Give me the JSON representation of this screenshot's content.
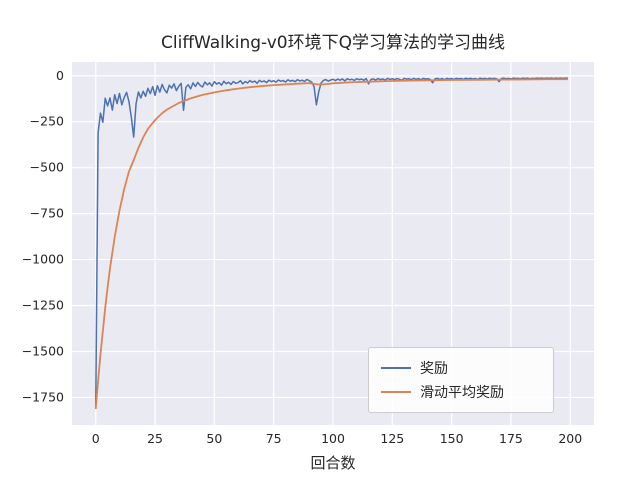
{
  "chart_data": {
    "type": "line",
    "title": "CliffWalking-v0环境下Q学习算法的学习曲线",
    "xlabel": "回合数",
    "ylabel": "",
    "xlim": [
      -10,
      210
    ],
    "ylim": [
      -1900,
      75
    ],
    "xticks": [
      0,
      25,
      50,
      75,
      100,
      125,
      150,
      175,
      200
    ],
    "yticks": [
      0,
      -250,
      -500,
      -750,
      -1000,
      -1250,
      -1500,
      -1750
    ],
    "grid": true,
    "legend_position": "lower right",
    "axes_background": "#eaeaf2",
    "grid_color": "#ffffff",
    "series": [
      {
        "name": "奖励",
        "color": "#4C72B0",
        "x_start": 0,
        "x_step": 1,
        "values": [
          -1812,
          -310,
          -203,
          -253,
          -122,
          -164,
          -120,
          -187,
          -103,
          -151,
          -96,
          -158,
          -118,
          -90,
          -140,
          -226,
          -333,
          -152,
          -88,
          -121,
          -84,
          -112,
          -68,
          -97,
          -59,
          -106,
          -54,
          -89,
          -47,
          -76,
          -93,
          -51,
          -67,
          -44,
          -81,
          -57,
          -41,
          -188,
          -63,
          -49,
          -71,
          -39,
          -58,
          -36,
          -52,
          -61,
          -34,
          -49,
          -38,
          -56,
          -32,
          -45,
          -37,
          -51,
          -30,
          -43,
          -35,
          -47,
          -31,
          -41,
          -37,
          -27,
          -44,
          -31,
          -39,
          -26,
          -35,
          -29,
          -41,
          -25,
          -33,
          -28,
          -37,
          -24,
          -32,
          -27,
          -35,
          -23,
          -30,
          -26,
          -34,
          -22,
          -29,
          -25,
          -32,
          -21,
          -28,
          -24,
          -31,
          -20,
          -27,
          -34,
          -58,
          -158,
          -86,
          -39,
          -25,
          -21,
          -29,
          -23,
          -19,
          -26,
          -18,
          -24,
          -17,
          -28,
          -16,
          -22,
          -19,
          -25,
          -16,
          -21,
          -18,
          -24,
          -15,
          -44,
          -20,
          -17,
          -23,
          -15,
          -21,
          -17,
          -24,
          -14,
          -20,
          -16,
          -22,
          -15,
          -19,
          -25,
          -14,
          -18,
          -16,
          -21,
          -14,
          -19,
          -15,
          -22,
          -14,
          -18,
          -16,
          -20,
          -38,
          -17,
          -14,
          -19,
          -15,
          -21,
          -14,
          -18,
          -15,
          -20,
          -14,
          -17,
          -15,
          -19,
          -13,
          -17,
          -14,
          -18,
          -15,
          -20,
          -13,
          -16,
          -14,
          -18,
          -13,
          -16,
          -14,
          -17,
          -32,
          -15,
          -13,
          -16,
          -14,
          -17,
          -13,
          -15,
          -14,
          -16,
          -13,
          -15,
          -13,
          -16,
          -14,
          -15,
          -13,
          -14,
          -13,
          -15,
          -13,
          -14,
          -13,
          -15,
          -13,
          -14,
          -13,
          -14,
          -13,
          -13
        ]
      },
      {
        "name": "滑动平均奖励",
        "color": "#DD8452",
        "points": [
          [
            0,
            -1812
          ],
          [
            1,
            -1660
          ],
          [
            2,
            -1515
          ],
          [
            3,
            -1389
          ],
          [
            4,
            -1262
          ],
          [
            5,
            -1152
          ],
          [
            6,
            -1049
          ],
          [
            7,
            -963
          ],
          [
            8,
            -877
          ],
          [
            10,
            -734
          ],
          [
            12,
            -616
          ],
          [
            14,
            -521
          ],
          [
            16,
            -459
          ],
          [
            18,
            -392
          ],
          [
            20,
            -335
          ],
          [
            22,
            -289
          ],
          [
            25,
            -241
          ],
          [
            28,
            -203
          ],
          [
            30,
            -184
          ],
          [
            35,
            -148
          ],
          [
            40,
            -123
          ],
          [
            45,
            -104
          ],
          [
            50,
            -90
          ],
          [
            55,
            -79
          ],
          [
            60,
            -70
          ],
          [
            65,
            -62
          ],
          [
            70,
            -56
          ],
          [
            75,
            -51
          ],
          [
            80,
            -47
          ],
          [
            85,
            -43
          ],
          [
            90,
            -40
          ],
          [
            93,
            -46
          ],
          [
            95,
            -48
          ],
          [
            98,
            -44
          ],
          [
            100,
            -41
          ],
          [
            105,
            -37
          ],
          [
            110,
            -34
          ],
          [
            115,
            -32
          ],
          [
            120,
            -30
          ],
          [
            130,
            -27
          ],
          [
            140,
            -25
          ],
          [
            150,
            -23
          ],
          [
            160,
            -22
          ],
          [
            170,
            -21
          ],
          [
            180,
            -20
          ],
          [
            190,
            -19
          ],
          [
            199,
            -19
          ]
        ]
      }
    ]
  }
}
